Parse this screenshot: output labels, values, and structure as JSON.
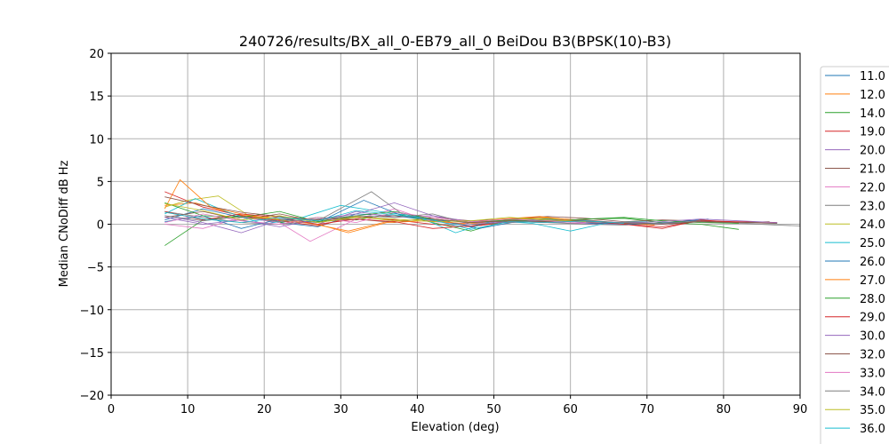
{
  "chart_data": {
    "type": "line",
    "title": "240726/results/BX_all_0-EB79_all_0 BeiDou B3(BPSK(10)-B3)",
    "xlabel": "Elevation (deg)",
    "ylabel": "Median CNoDiff dB Hz",
    "xlim": [
      0,
      90
    ],
    "ylim": [
      -20,
      20
    ],
    "xticks": [
      "0",
      "10",
      "20",
      "30",
      "40",
      "50",
      "60",
      "70",
      "80",
      "90"
    ],
    "yticks": [
      "20",
      "15",
      "10",
      "5",
      "0",
      "−5",
      "−10",
      "−15",
      "−20"
    ],
    "grid": true,
    "legend_position": "right",
    "series": [
      {
        "name": "11.0",
        "color": "#1f77b4",
        "x": [
          7,
          12,
          17,
          22,
          27,
          32,
          37,
          42,
          47,
          52,
          57,
          62,
          67,
          72,
          77,
          82,
          87
        ],
        "values": [
          0.5,
          1.8,
          0.8,
          0.2,
          -0.3,
          1.2,
          1.0,
          0.4,
          -0.2,
          0.5,
          0.6,
          0.3,
          0.1,
          0.0,
          0.3,
          0.2,
          0.1
        ]
      },
      {
        "name": "12.0",
        "color": "#ff7f0e",
        "x": [
          7,
          11,
          16,
          21,
          26,
          31,
          36,
          41,
          46,
          51,
          56,
          61,
          66,
          71
        ],
        "values": [
          2.2,
          2.5,
          1.2,
          0.6,
          0.1,
          -0.8,
          0.3,
          0.6,
          0.0,
          0.4,
          0.8,
          0.5,
          0.2,
          -0.1
        ]
      },
      {
        "name": "14.0",
        "color": "#2ca02c",
        "x": [
          7,
          12,
          17,
          22,
          27,
          32,
          37,
          42,
          47,
          52,
          57,
          62,
          67,
          72,
          77,
          82
        ],
        "values": [
          -2.5,
          0.5,
          1.0,
          0.2,
          0.8,
          0.5,
          1.3,
          0.2,
          -0.8,
          0.5,
          0.3,
          0.6,
          0.7,
          0.2,
          0.0,
          -0.6
        ]
      },
      {
        "name": "19.0",
        "color": "#d62728",
        "x": [
          7,
          12,
          17,
          22,
          27,
          32,
          37,
          42,
          47,
          52,
          57,
          62,
          67,
          72,
          77,
          82,
          87
        ],
        "values": [
          3.8,
          2.0,
          1.0,
          0.4,
          -0.2,
          0.9,
          0.5,
          0.0,
          -0.3,
          0.3,
          0.5,
          0.2,
          0.0,
          -0.3,
          0.4,
          0.3,
          0.2
        ]
      },
      {
        "name": "20.0",
        "color": "#9467bd",
        "x": [
          7,
          12,
          17,
          22,
          27,
          32,
          37,
          42,
          47,
          52,
          57,
          62,
          67,
          72,
          77
        ],
        "values": [
          1.0,
          0.2,
          -1.0,
          0.5,
          0.0,
          1.5,
          0.8,
          1.0,
          0.0,
          0.2,
          0.3,
          0.0,
          0.2,
          0.1,
          0.3
        ]
      },
      {
        "name": "21.0",
        "color": "#8c564b",
        "x": [
          7,
          12,
          17,
          22,
          27,
          32,
          37,
          42,
          47,
          52,
          57,
          62,
          67,
          72,
          77,
          82,
          86
        ],
        "values": [
          0.8,
          1.5,
          0.5,
          1.2,
          0.3,
          0.6,
          0.2,
          0.8,
          0.4,
          0.6,
          0.9,
          0.7,
          0.3,
          0.5,
          0.4,
          0.2,
          0.3
        ]
      },
      {
        "name": "22.0",
        "color": "#e377c2",
        "x": [
          7,
          12,
          17,
          22,
          26,
          32,
          37,
          42,
          47,
          52,
          57,
          62,
          67
        ],
        "values": [
          0.0,
          -0.5,
          0.8,
          0.2,
          -2.0,
          0.6,
          1.8,
          0.3,
          0.0,
          0.4,
          0.2,
          0.1,
          0.0
        ]
      },
      {
        "name": "23.0",
        "color": "#7f7f7f",
        "x": [
          7,
          12,
          17,
          22,
          27,
          34,
          38,
          42,
          47,
          52,
          57,
          62,
          67,
          72,
          77,
          82,
          87,
          90
        ],
        "values": [
          1.5,
          0.8,
          0.2,
          0.0,
          0.4,
          3.8,
          1.2,
          0.5,
          0.2,
          0.3,
          0.2,
          0.0,
          -0.1,
          0.2,
          0.3,
          0.1,
          -0.1,
          -0.2
        ]
      },
      {
        "name": "24.0",
        "color": "#bcbd22",
        "x": [
          7,
          10,
          14,
          18,
          22,
          27,
          32,
          37,
          42,
          47,
          52,
          57,
          62
        ],
        "values": [
          2.0,
          2.8,
          3.3,
          1.0,
          0.6,
          0.2,
          0.9,
          0.4,
          0.6,
          0.2,
          0.5,
          0.7,
          0.3
        ]
      },
      {
        "name": "25.0",
        "color": "#17becf",
        "x": [
          7,
          11,
          15,
          20,
          25,
          30,
          35,
          40,
          45,
          50,
          55,
          60,
          65,
          70
        ],
        "values": [
          1.2,
          3.0,
          1.5,
          0.0,
          0.8,
          2.2,
          1.5,
          0.9,
          -1.0,
          0.4,
          0.1,
          -0.8,
          0.2,
          0.3
        ]
      },
      {
        "name": "26.0",
        "color": "#1f77b4",
        "x": [
          7,
          12,
          17,
          22,
          27,
          33,
          38,
          43,
          48,
          53,
          58,
          63,
          68,
          73,
          78
        ],
        "values": [
          0.3,
          1.0,
          -0.5,
          0.6,
          0.2,
          2.8,
          1.0,
          0.5,
          -0.5,
          0.3,
          0.4,
          0.1,
          0.0,
          0.2,
          0.6
        ]
      },
      {
        "name": "27.0",
        "color": "#ff7f0e",
        "x": [
          7,
          9,
          13,
          17,
          22,
          27,
          31,
          36,
          41,
          46,
          51,
          56,
          61,
          66
        ],
        "values": [
          1.8,
          5.2,
          2.0,
          1.2,
          0.5,
          0.0,
          -1.0,
          0.2,
          0.4,
          0.1,
          0.6,
          0.9,
          0.4,
          0.2
        ]
      },
      {
        "name": "28.0",
        "color": "#2ca02c",
        "x": [
          7,
          12,
          17,
          22,
          27,
          32,
          37,
          42,
          47,
          52,
          57,
          62,
          67,
          72,
          77,
          82
        ],
        "values": [
          2.5,
          1.0,
          0.8,
          1.5,
          0.3,
          1.0,
          1.5,
          0.6,
          0.2,
          0.5,
          0.3,
          0.6,
          0.8,
          0.4,
          0.2,
          0.1
        ]
      },
      {
        "name": "29.0",
        "color": "#d62728",
        "x": [
          7,
          12,
          17,
          22,
          27,
          32,
          37,
          42,
          47,
          52,
          57,
          62,
          67,
          72,
          77,
          82
        ],
        "values": [
          1.5,
          0.5,
          1.2,
          0.8,
          0.0,
          0.6,
          0.3,
          -0.5,
          -0.2,
          0.3,
          0.2,
          0.4,
          0.0,
          -0.5,
          0.5,
          0.2
        ]
      },
      {
        "name": "30.0",
        "color": "#9467bd",
        "x": [
          7,
          12,
          17,
          22,
          27,
          32,
          37,
          42,
          47,
          52,
          57,
          62,
          67,
          72,
          77,
          82,
          87
        ],
        "values": [
          0.8,
          0.0,
          0.5,
          -0.3,
          0.6,
          1.2,
          2.5,
          1.0,
          0.3,
          0.2,
          0.5,
          0.4,
          0.2,
          0.3,
          0.6,
          0.4,
          0.2
        ]
      },
      {
        "name": "32.0",
        "color": "#8c564b",
        "x": [
          7,
          12,
          17,
          22,
          27,
          32,
          37,
          42,
          47,
          52,
          57,
          62,
          67,
          72,
          77,
          82,
          87
        ],
        "values": [
          3.2,
          2.2,
          1.4,
          0.9,
          0.5,
          0.8,
          1.0,
          0.6,
          0.2,
          0.4,
          0.3,
          0.5,
          0.1,
          0.0,
          0.3,
          0.2,
          0.1
        ]
      },
      {
        "name": "33.0",
        "color": "#e377c2",
        "x": [
          7,
          12,
          17,
          22,
          27,
          32,
          37,
          42,
          47,
          52,
          57,
          62
        ],
        "values": [
          0.2,
          1.2,
          0.4,
          0.0,
          0.8,
          0.2,
          1.4,
          0.8,
          0.3,
          0.6,
          0.4,
          0.2
        ]
      },
      {
        "name": "34.0",
        "color": "#7f7f7f",
        "x": [
          7,
          12,
          17,
          22,
          27,
          32,
          37,
          42,
          47,
          52,
          57,
          62,
          67,
          72,
          77
        ],
        "values": [
          1.0,
          0.4,
          0.9,
          0.3,
          0.6,
          1.0,
          0.8,
          1.2,
          0.0,
          0.2,
          0.5,
          0.3,
          0.2,
          0.1,
          0.4
        ]
      },
      {
        "name": "35.0",
        "color": "#bcbd22",
        "x": [
          7,
          12,
          17,
          22,
          27,
          32,
          37,
          42,
          47,
          52,
          57,
          62
        ],
        "values": [
          2.4,
          1.6,
          0.5,
          1.0,
          0.2,
          0.8,
          0.6,
          0.3,
          0.4,
          0.8,
          0.5,
          0.3
        ]
      },
      {
        "name": "36.0",
        "color": "#17becf",
        "x": [
          7,
          12,
          17,
          22,
          27,
          32,
          37,
          42,
          47,
          52,
          57,
          62,
          67
        ],
        "values": [
          1.4,
          0.6,
          0.2,
          0.8,
          0.4,
          1.6,
          1.1,
          0.5,
          -0.6,
          0.3,
          0.2,
          0.4,
          0.1
        ]
      }
    ]
  }
}
